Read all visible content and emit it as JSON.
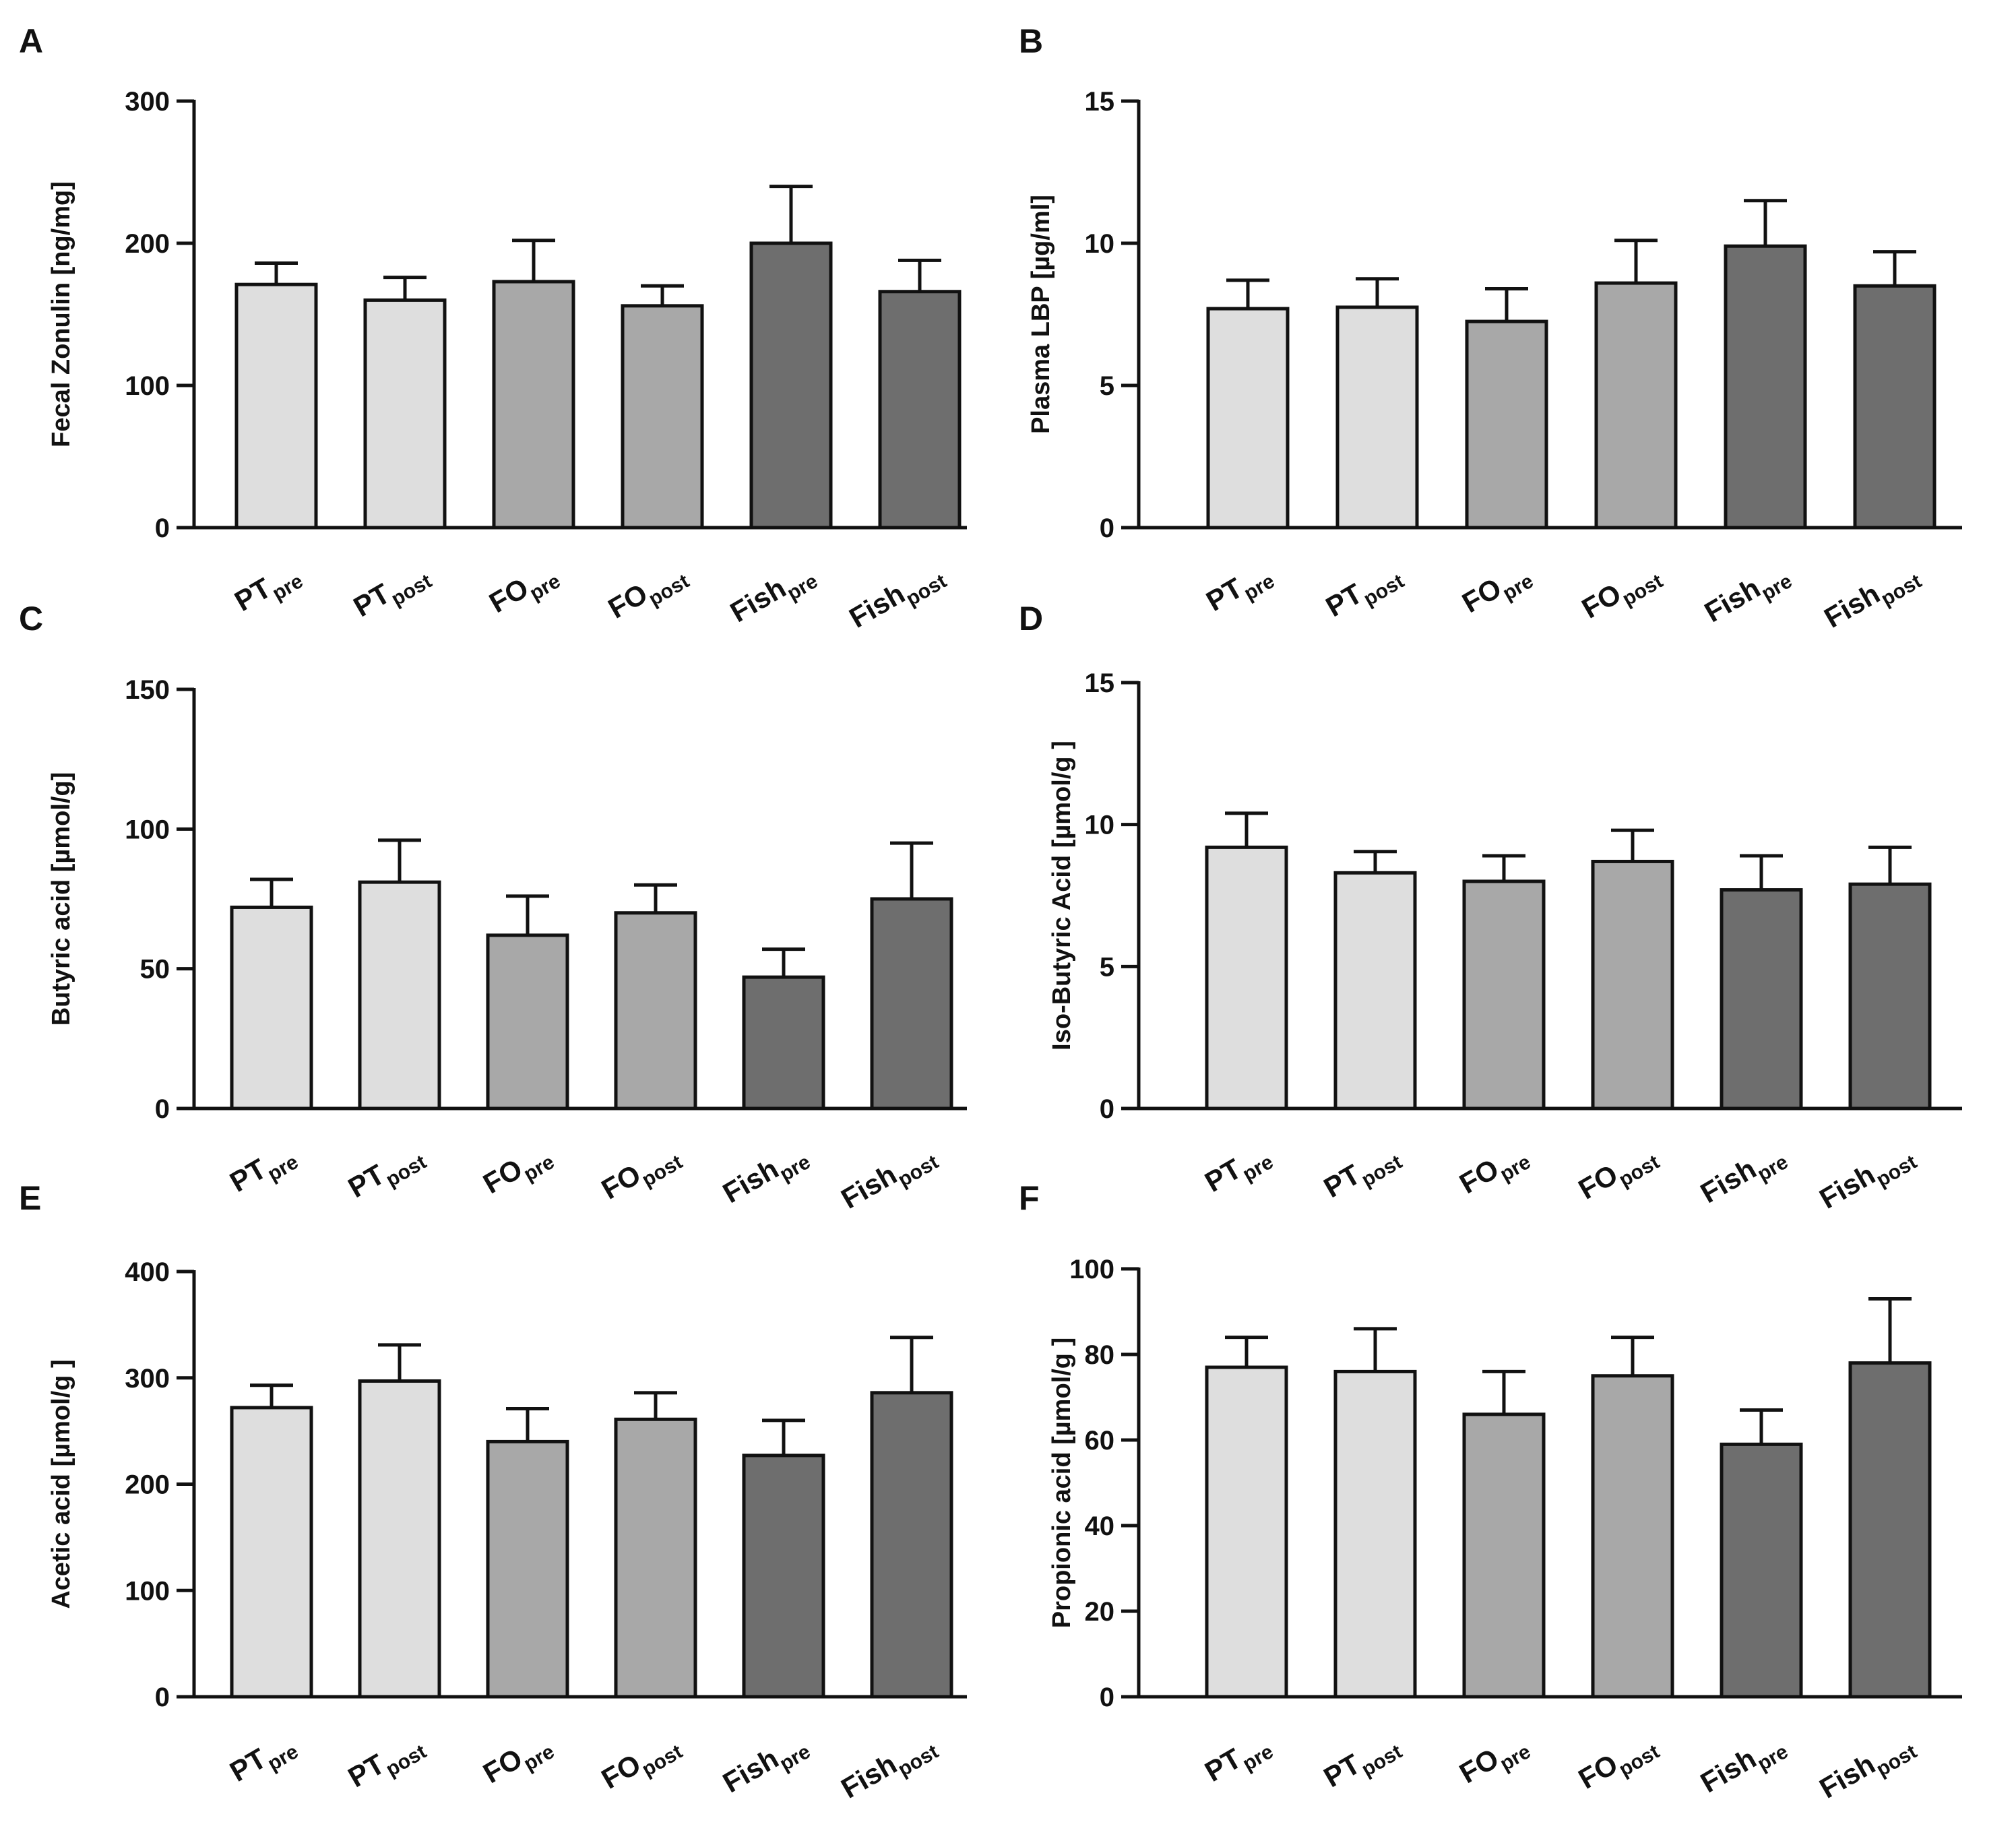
{
  "figure": {
    "categories": [
      {
        "main": "PT",
        "sub": "pre"
      },
      {
        "main": "PT",
        "sub": "post"
      },
      {
        "main": "FO",
        "sub": "pre"
      },
      {
        "main": "FO",
        "sub": "post"
      },
      {
        "main": "Fish",
        "sub": "pre"
      },
      {
        "main": "Fish",
        "sub": "post"
      }
    ],
    "bar_colors": [
      "#dedede",
      "#dedede",
      "#a8a8a8",
      "#a8a8a8",
      "#6e6e6e",
      "#6e6e6e"
    ],
    "edge_color": "#111111"
  },
  "chart_data": [
    {
      "panel": "A",
      "type": "bar",
      "ylabel": "Fecal Zonulin  [ng/mg]",
      "ylim": [
        0,
        300
      ],
      "yticks": [
        0,
        100,
        200,
        300
      ],
      "categories": [
        "PT pre",
        "PT post",
        "FO pre",
        "FO post",
        "Fish pre",
        "Fish post"
      ],
      "values": [
        171,
        160,
        173,
        156,
        200,
        166
      ],
      "errors": [
        15,
        16,
        29,
        14,
        40,
        22
      ]
    },
    {
      "panel": "B",
      "type": "bar",
      "ylabel": "Plasma LBP  [µg/ml]",
      "ylim": [
        0,
        15
      ],
      "yticks": [
        0,
        5,
        10,
        15
      ],
      "categories": [
        "PT pre",
        "PT post",
        "FO pre",
        "FO post",
        "Fish pre",
        "Fish post"
      ],
      "values": [
        7.7,
        7.75,
        7.25,
        8.6,
        9.9,
        8.5
      ],
      "errors": [
        1.0,
        1.0,
        1.15,
        1.5,
        1.6,
        1.2
      ]
    },
    {
      "panel": "C",
      "type": "bar",
      "ylabel": "Butyric acid [µmol/g]",
      "ylim": [
        0,
        150
      ],
      "yticks": [
        0,
        50,
        100,
        150
      ],
      "categories": [
        "PT pre",
        "PT post",
        "FO pre",
        "FO post",
        "Fish pre",
        "Fish post"
      ],
      "values": [
        72,
        81,
        62,
        70,
        47,
        75
      ],
      "errors": [
        10,
        15,
        14,
        10,
        10,
        20
      ]
    },
    {
      "panel": "D",
      "type": "bar",
      "ylabel": "Iso-Butyric Acid [µmol/g ]",
      "ylim": [
        0,
        15
      ],
      "yticks": [
        0,
        5,
        10,
        15
      ],
      "categories": [
        "PT pre",
        "PT post",
        "FO pre",
        "FO post",
        "Fish pre",
        "Fish post"
      ],
      "values": [
        9.2,
        8.3,
        8.0,
        8.7,
        7.7,
        7.9
      ],
      "errors": [
        1.2,
        0.75,
        0.9,
        1.1,
        1.2,
        1.3
      ]
    },
    {
      "panel": "E",
      "type": "bar",
      "ylabel": "Acetic acid [µmol/g ]",
      "ylim": [
        0,
        400
      ],
      "yticks": [
        0,
        100,
        200,
        300,
        400
      ],
      "categories": [
        "PT pre",
        "PT post",
        "FO pre",
        "FO post",
        "Fish pre",
        "Fish post"
      ],
      "values": [
        272,
        297,
        240,
        261,
        227,
        286
      ],
      "errors": [
        21,
        34,
        31,
        25,
        33,
        52
      ]
    },
    {
      "panel": "F",
      "type": "bar",
      "ylabel": "Propionic acid [µmol/g ]",
      "ylim": [
        0,
        100
      ],
      "yticks": [
        0,
        20,
        40,
        60,
        80,
        100
      ],
      "categories": [
        "PT pre",
        "PT post",
        "FO pre",
        "FO post",
        "Fish pre",
        "Fish post"
      ],
      "values": [
        77,
        76,
        66,
        75,
        59,
        78
      ],
      "errors": [
        7,
        10,
        10,
        9,
        8,
        15
      ]
    }
  ]
}
